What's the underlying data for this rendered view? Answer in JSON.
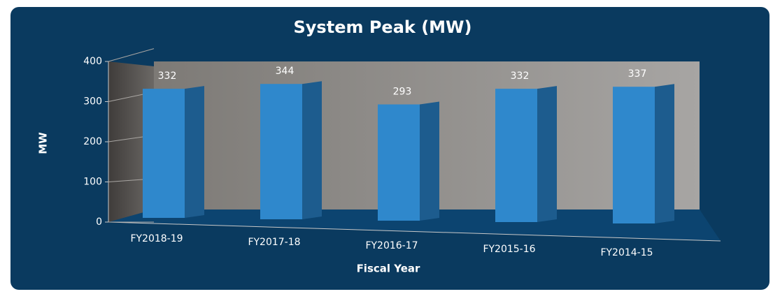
{
  "chart_data": {
    "type": "bar3d",
    "title": "System Peak (MW)",
    "x_label": "Fiscal Year",
    "y_label": "MW",
    "categories": [
      "FY2018-19",
      "FY2017-18",
      "FY2016-17",
      "FY2015-16",
      "FY2014-15"
    ],
    "values": [
      332,
      344,
      293,
      332,
      337
    ],
    "color": "#2f88cc",
    "ylim": [
      0,
      400
    ],
    "yticks": [
      0,
      100,
      200,
      300,
      400
    ],
    "grid": true
  }
}
